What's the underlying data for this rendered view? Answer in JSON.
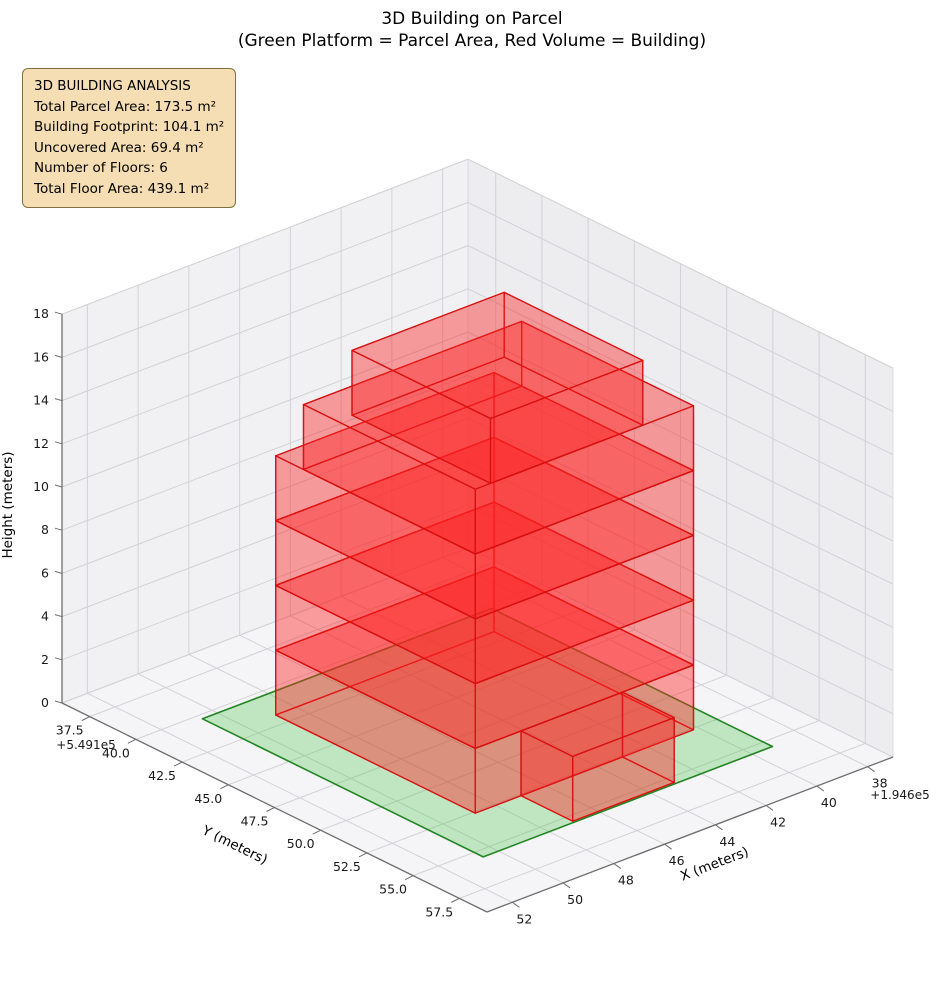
{
  "figure": {
    "title_line1": "3D Building on Parcel",
    "title_line2": "(Green Platform = Parcel Area, Red Volume = Building)"
  },
  "info_box": {
    "title": "3D BUILDING ANALYSIS",
    "lines": [
      "Total Parcel Area: 173.5 m²",
      "Building Footprint: 104.1 m²",
      "Uncovered Area: 69.4 m²",
      "Number of Floors: 6",
      "Total Floor Area: 439.1 m²"
    ]
  },
  "chart_data": {
    "type": "3d-building-volume",
    "title": "3D Building on Parcel",
    "subtitle": "(Green Platform = Parcel Area, Red Volume = Building)",
    "x_axis": {
      "label": "X (meters)",
      "ticks": [
        "38",
        "40",
        "42",
        "44",
        "46",
        "48",
        "50",
        "52"
      ],
      "offset_text": "+1.946e5",
      "range": [
        37,
        53
      ]
    },
    "y_axis": {
      "label": "Y (meters)",
      "ticks": [
        "37.5",
        "40.0",
        "42.5",
        "45.0",
        "47.5",
        "50.0",
        "52.5",
        "55.0",
        "57.5"
      ],
      "offset_text": "+5.491e5",
      "range": [
        36,
        59
      ]
    },
    "z_axis": {
      "label": "Height (meters)",
      "ticks": [
        "0",
        "2",
        "4",
        "6",
        "8",
        "10",
        "12",
        "14",
        "16",
        "18"
      ],
      "range": [
        0,
        18
      ]
    },
    "parcel": {
      "name": "parcel-platform",
      "area_m2": 173.5,
      "fill": "rgba(80,195,80,0.32)",
      "edge": "rgba(25,128,25,0.95)",
      "x": [
        39.2,
        50.6
      ],
      "y": [
        40.3,
        55.5
      ],
      "z": 0
    },
    "building": {
      "name": "building-volume",
      "footprint_m2": 104.1,
      "uncovered_area_m2": 69.4,
      "num_floors": 6,
      "floor_height_m": 3,
      "total_floor_area_m2": 439.1,
      "fill": "rgba(255,35,35,0.24)",
      "edge": "rgba(215,15,15,0.9)",
      "floors": [
        {
          "z": [
            0,
            3
          ],
          "boxes": [
            [
              40.2,
              48.8,
              41.8,
              52.6
            ],
            [
              43.0,
              47.0,
              52.6,
              55.4
            ]
          ]
        },
        {
          "z": [
            3,
            6
          ],
          "boxes": [
            [
              40.2,
              48.8,
              41.8,
              52.6
            ]
          ]
        },
        {
          "z": [
            6,
            9
          ],
          "boxes": [
            [
              40.2,
              48.8,
              41.8,
              52.6
            ]
          ]
        },
        {
          "z": [
            9,
            12
          ],
          "boxes": [
            [
              40.2,
              48.8,
              41.8,
              52.6
            ]
          ]
        },
        {
          "z": [
            12,
            15
          ],
          "boxes": [
            [
              40.2,
              48.8,
              43.3,
              52.6
            ]
          ]
        },
        {
          "z": [
            15,
            18
          ],
          "boxes": [
            [
              42.2,
              48.2,
              45.1,
              52.6
            ]
          ]
        }
      ]
    },
    "grid": true,
    "legend_position": "none",
    "pane_color": "#f1f1f3",
    "grid_color": "#d2d2d6"
  }
}
